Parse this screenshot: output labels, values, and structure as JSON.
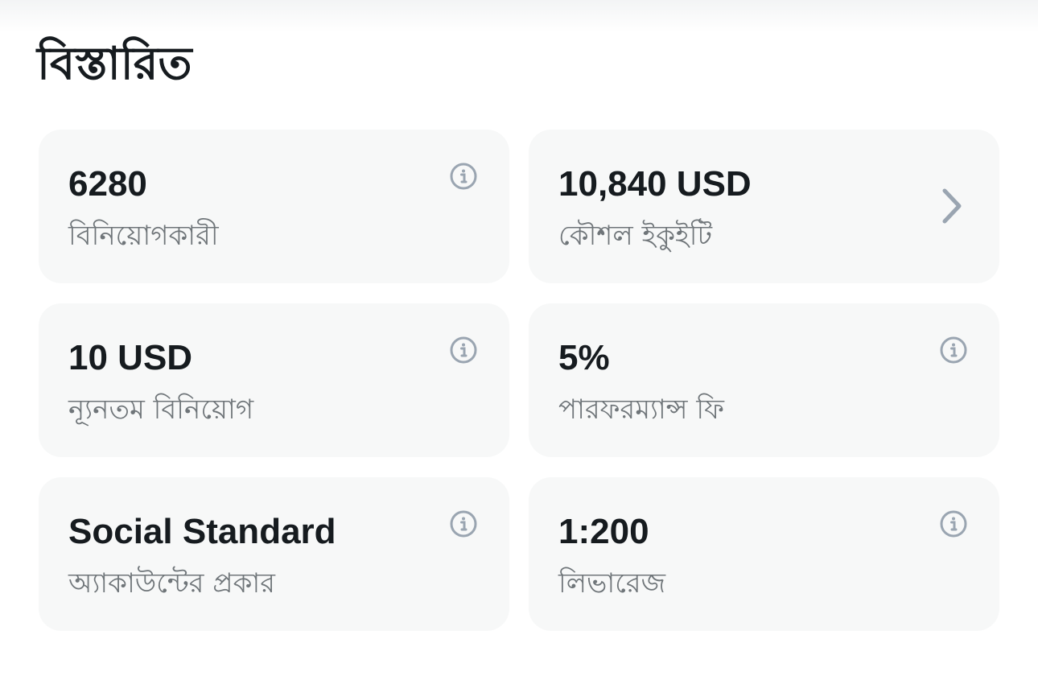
{
  "section_title": "বিস্তারিত",
  "cards": [
    {
      "value": "6280",
      "label": "বিনিয়োগকারী",
      "icon": "info-icon"
    },
    {
      "value": "10,840 USD",
      "label": "কৌশল ইকুইটি",
      "icon": "chevron-right-icon"
    },
    {
      "value": "10 USD",
      "label": "ন্যূনতম বিনিয়োগ",
      "icon": "info-icon"
    },
    {
      "value": "5%",
      "label": "পারফরম্যান্স ফি",
      "icon": "info-icon"
    },
    {
      "value": "Social Standard",
      "label": "অ্যাকাউন্টের প্রকার",
      "icon": "info-icon"
    },
    {
      "value": "1:200",
      "label": "লিভারেজ",
      "icon": "info-icon"
    }
  ],
  "colors": {
    "card_bg": "#f7f8f8",
    "icon": "#9aa5b1",
    "value": "#161b1f",
    "label": "#6f7579"
  }
}
